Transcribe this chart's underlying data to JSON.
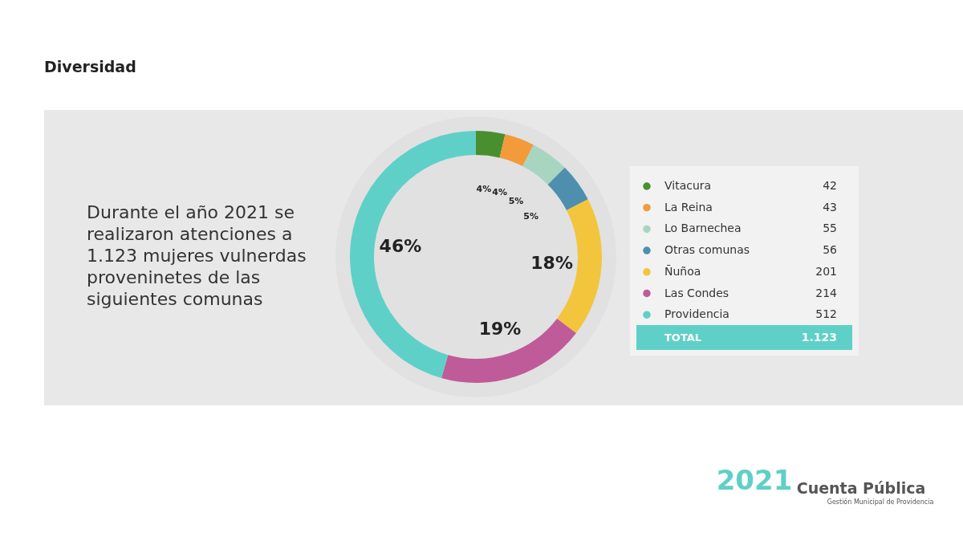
{
  "chart_data": {
    "type": "donut",
    "title": "Diversidad",
    "categories": [
      "Vitacura",
      "La Reina",
      "Lo Barnechea",
      "Otras comunas",
      "Ñuñoa",
      "Las Condes",
      "Providencia"
    ],
    "values": [
      42,
      43,
      55,
      56,
      201,
      214,
      512
    ],
    "colors": [
      "#4a8f2f",
      "#f39a3b",
      "#a8d5c0",
      "#4f8fae",
      "#f2c53d",
      "#bf5b98",
      "#5fd0c7"
    ],
    "data_labels": true,
    "legend": "right",
    "annotations": [
      {
        "text": "4%",
        "x": "Vitacura"
      },
      {
        "text": "4%",
        "x": "La Reina"
      },
      {
        "text": "5%",
        "x": "Lo Barnechea"
      },
      {
        "text": "5%",
        "x": "Otras comunas"
      },
      {
        "text": "18%",
        "x": "Ñuñoa"
      },
      {
        "text": "19%",
        "x": "Las Condes"
      },
      {
        "text": "46%",
        "x": "Providencia"
      },
      "Durante el año 2021 se\nrealizaron atenciones a\n1.123 mujeres vulnerdas\nproveninetes de las\nsiguientes comunas",
      "TOTAL",
      "1.123",
      "2021",
      "Cuenta Pública",
      "Gestión Municipal de Providencia"
    ]
  }
}
